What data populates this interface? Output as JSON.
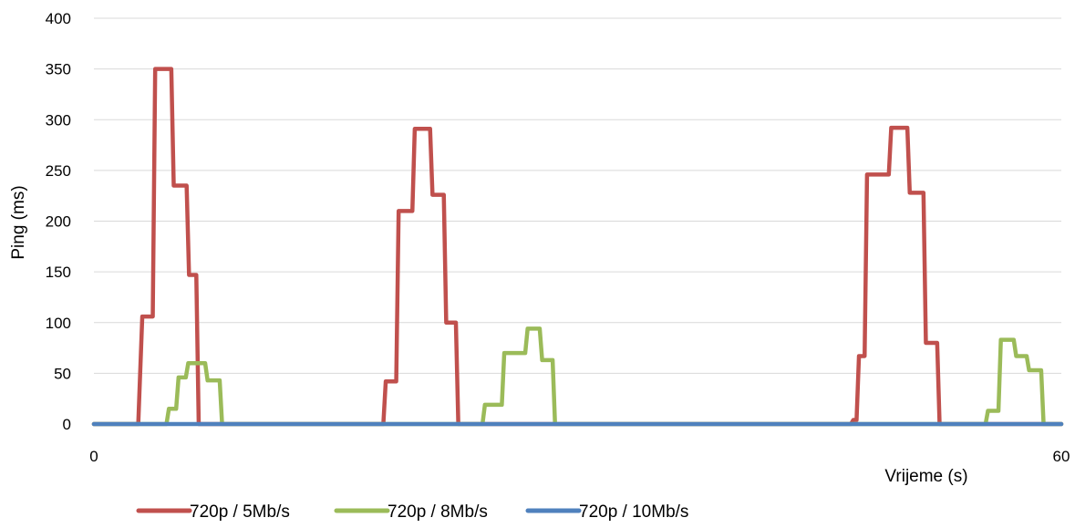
{
  "chart_data": {
    "type": "line",
    "title": "",
    "xlabel": "Vrijeme (s)",
    "ylabel": "Ping (ms)",
    "xlim": [
      0,
      60
    ],
    "ylim": [
      0,
      400
    ],
    "x_ticks": [
      "0",
      "60"
    ],
    "y_ticks": [
      "0",
      "50",
      "100",
      "150",
      "200",
      "250",
      "300",
      "350",
      "400"
    ],
    "grid": "horizontal",
    "legend_position": "bottom",
    "series": [
      {
        "name": "720p / 5Mb/s",
        "color": "#c0504d",
        "points": [
          [
            0,
            0
          ],
          [
            2.75,
            0
          ],
          [
            3.0,
            106
          ],
          [
            3.65,
            106
          ],
          [
            3.8,
            350
          ],
          [
            4.8,
            350
          ],
          [
            4.95,
            235
          ],
          [
            5.75,
            235
          ],
          [
            5.9,
            147
          ],
          [
            6.35,
            147
          ],
          [
            6.5,
            0
          ],
          [
            17.95,
            0
          ],
          [
            18.1,
            42
          ],
          [
            18.75,
            42
          ],
          [
            18.9,
            210
          ],
          [
            19.75,
            210
          ],
          [
            19.9,
            291
          ],
          [
            20.85,
            291
          ],
          [
            21.0,
            226
          ],
          [
            21.7,
            226
          ],
          [
            21.85,
            100
          ],
          [
            22.45,
            100
          ],
          [
            22.6,
            0
          ],
          [
            46.95,
            0
          ],
          [
            47.1,
            4
          ],
          [
            47.3,
            4
          ],
          [
            47.45,
            67
          ],
          [
            47.8,
            67
          ],
          [
            47.95,
            246
          ],
          [
            49.3,
            246
          ],
          [
            49.45,
            292
          ],
          [
            50.45,
            292
          ],
          [
            50.6,
            228
          ],
          [
            51.45,
            228
          ],
          [
            51.6,
            80
          ],
          [
            52.3,
            80
          ],
          [
            52.45,
            0
          ],
          [
            60,
            0
          ]
        ]
      },
      {
        "name": "720p / 8Mb/s",
        "color": "#9bbb59",
        "points": [
          [
            0,
            0
          ],
          [
            4.5,
            0
          ],
          [
            4.65,
            15
          ],
          [
            5.1,
            15
          ],
          [
            5.25,
            46
          ],
          [
            5.7,
            46
          ],
          [
            5.85,
            60
          ],
          [
            6.9,
            60
          ],
          [
            7.05,
            43
          ],
          [
            7.8,
            43
          ],
          [
            7.95,
            0
          ],
          [
            24.1,
            0
          ],
          [
            24.25,
            19
          ],
          [
            25.3,
            19
          ],
          [
            25.45,
            70
          ],
          [
            26.75,
            70
          ],
          [
            26.9,
            94
          ],
          [
            27.65,
            94
          ],
          [
            27.8,
            63
          ],
          [
            28.45,
            63
          ],
          [
            28.6,
            0
          ],
          [
            55.3,
            0
          ],
          [
            55.45,
            13
          ],
          [
            56.1,
            13
          ],
          [
            56.25,
            83
          ],
          [
            57.05,
            83
          ],
          [
            57.2,
            67
          ],
          [
            57.85,
            67
          ],
          [
            58.0,
            53
          ],
          [
            58.75,
            53
          ],
          [
            58.9,
            0
          ],
          [
            60,
            0
          ]
        ]
      },
      {
        "name": "720p / 10Mb/s",
        "color": "#4f81bd",
        "points": [
          [
            0,
            0
          ],
          [
            60,
            0
          ]
        ]
      }
    ]
  }
}
